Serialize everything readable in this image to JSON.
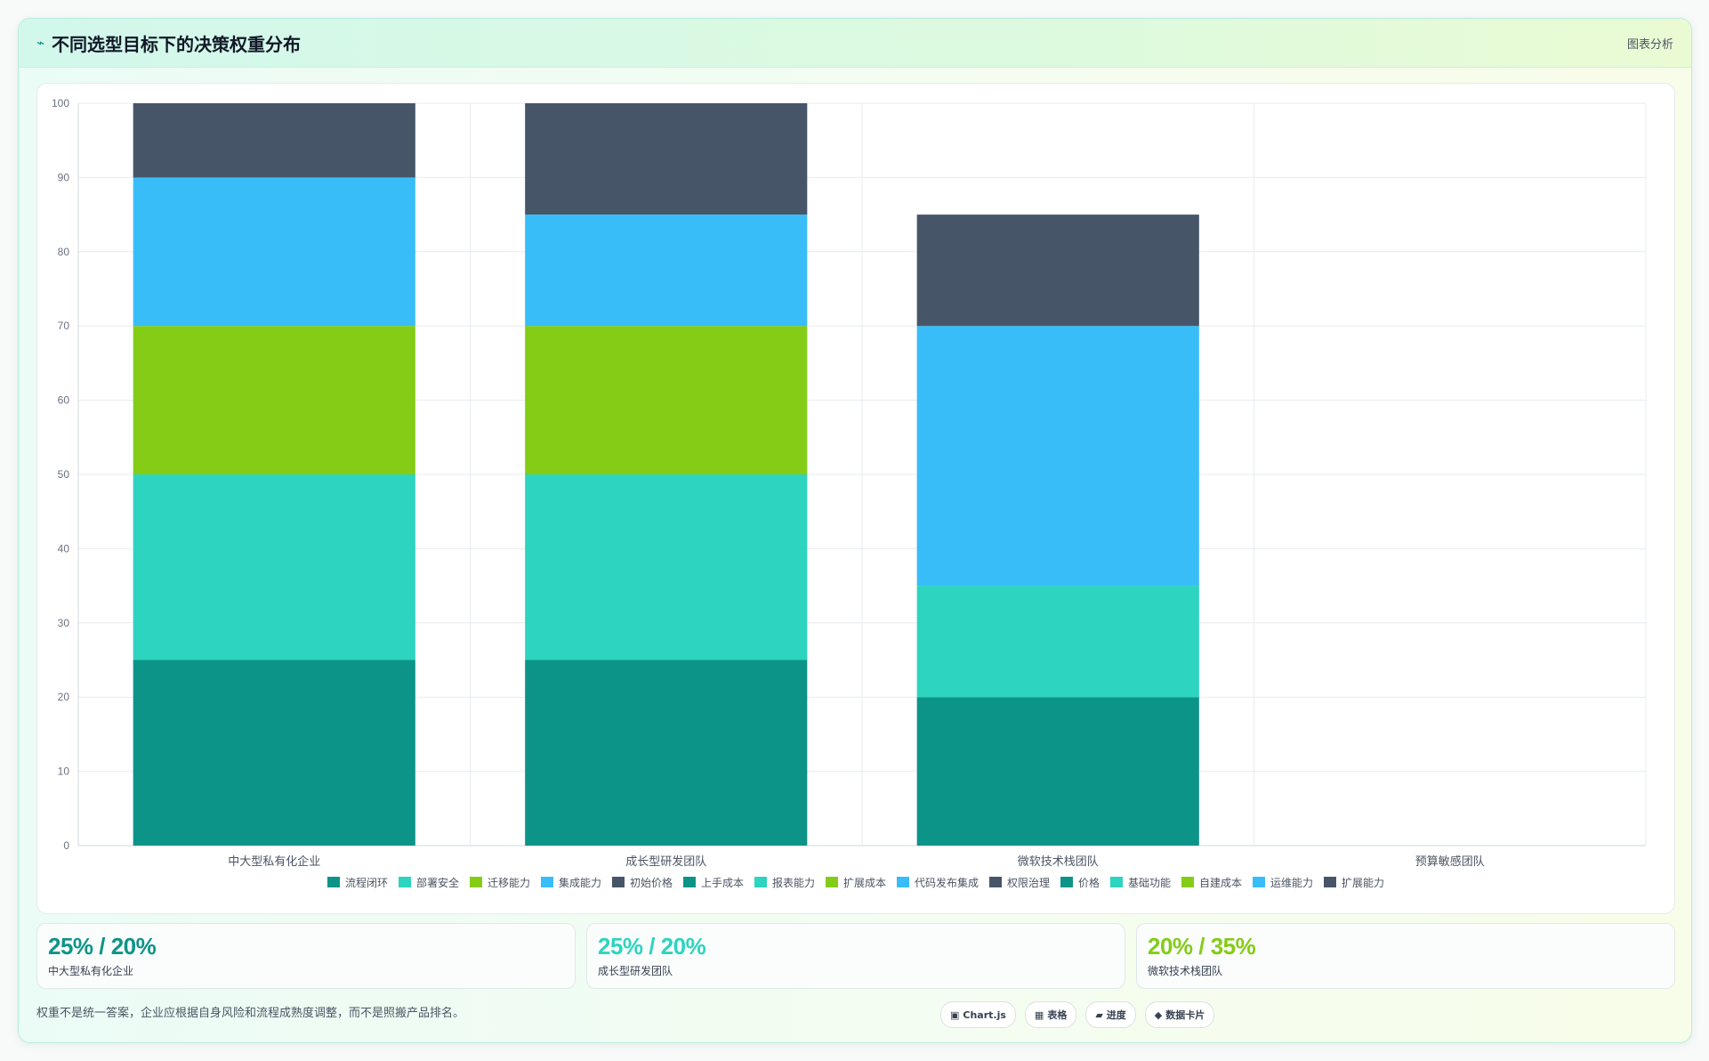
{
  "header": {
    "title": "不同选型目标下的决策权重分布",
    "title_icon": "trend-icon",
    "tag": "图表分析"
  },
  "chart_data": {
    "type": "bar",
    "stacked": true,
    "categories": [
      "中大型私有化企业",
      "成长型研发团队",
      "微软技术栈团队",
      "预算敏感团队"
    ],
    "ylim": [
      0,
      100
    ],
    "yticks": [
      0,
      10,
      20,
      30,
      40,
      50,
      60,
      70,
      80,
      90,
      100
    ],
    "grid": true,
    "legend_position": "bottom",
    "series": [
      {
        "name": "流程闭环",
        "color": "#0d9488",
        "values": [
          25,
          0,
          0,
          0
        ]
      },
      {
        "name": "部署安全",
        "color": "#2dd4bf",
        "values": [
          25,
          0,
          0,
          0
        ]
      },
      {
        "name": "迁移能力",
        "color": "#84cc16",
        "values": [
          20,
          0,
          0,
          0
        ]
      },
      {
        "name": "集成能力",
        "color": "#38bdf8",
        "values": [
          20,
          0,
          0,
          0
        ]
      },
      {
        "name": "初始价格",
        "color": "#475569",
        "values": [
          10,
          0,
          0,
          0
        ]
      },
      {
        "name": "上手成本",
        "color": "#0d9488",
        "values": [
          0,
          25,
          0,
          0
        ]
      },
      {
        "name": "报表能力",
        "color": "#2dd4bf",
        "values": [
          0,
          25,
          0,
          0
        ]
      },
      {
        "name": "扩展成本",
        "color": "#84cc16",
        "values": [
          0,
          20,
          0,
          0
        ]
      },
      {
        "name": "代码发布集成",
        "color": "#38bdf8",
        "values": [
          0,
          15,
          0,
          0
        ]
      },
      {
        "name": "权限治理",
        "color": "#475569",
        "values": [
          0,
          15,
          0,
          0
        ]
      },
      {
        "name": "价格",
        "color": "#0d9488",
        "values": [
          0,
          0,
          20,
          0
        ]
      },
      {
        "name": "基础功能",
        "color": "#2dd4bf",
        "values": [
          0,
          0,
          15,
          0
        ]
      },
      {
        "name": "自建成本",
        "color": "#84cc16",
        "values": [
          0,
          0,
          0,
          0
        ]
      },
      {
        "name": "运维能力",
        "color": "#38bdf8",
        "values": [
          0,
          0,
          35,
          0
        ]
      },
      {
        "name": "扩展能力",
        "color": "#475569",
        "values": [
          0,
          0,
          15,
          0
        ]
      }
    ]
  },
  "stats": [
    {
      "value": "25% / 20%",
      "label": "中大型私有化企业",
      "color": "#0d9488"
    },
    {
      "value": "25% / 20%",
      "label": "成长型研发团队",
      "color": "#2dd4bf"
    },
    {
      "value": "20% / 35%",
      "label": "微软技术栈团队",
      "color": "#84cc16"
    }
  ],
  "footer": {
    "note": "权重不是统一答案，企业应根据自身风险和流程成熟度调整，而不是照搬产品排名。",
    "chips": [
      {
        "icon": "▣",
        "label": "Chart.js"
      },
      {
        "icon": "▦",
        "label": "表格"
      },
      {
        "icon": "▰",
        "label": "进度"
      },
      {
        "icon": "◆",
        "label": "数据卡片"
      }
    ]
  }
}
